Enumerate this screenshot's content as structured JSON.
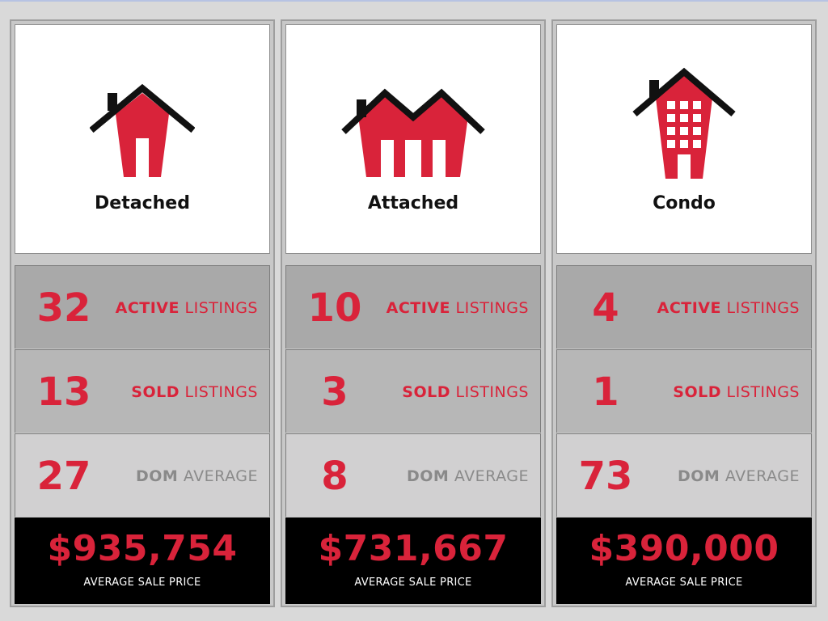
{
  "colors": {
    "accent_red": "#d9233a",
    "muted_grey": "#8a8a8a",
    "price_bg": "#000000"
  },
  "columns": [
    {
      "type": "Detached",
      "icon": "detached-house-icon",
      "active": {
        "value": "32",
        "strong": "ACTIVE",
        "rest": " LISTINGS"
      },
      "sold": {
        "value": "13",
        "strong": "SOLD",
        "rest": " LISTINGS"
      },
      "dom": {
        "value": "27",
        "strong": "DOM",
        "rest": " AVERAGE"
      },
      "price": {
        "value": "$935,754",
        "label": "AVERAGE SALE PRICE"
      }
    },
    {
      "type": "Attached",
      "icon": "attached-house-icon",
      "active": {
        "value": "10",
        "strong": "ACTIVE",
        "rest": " LISTINGS"
      },
      "sold": {
        "value": "3",
        "strong": "SOLD",
        "rest": " LISTINGS"
      },
      "dom": {
        "value": "8",
        "strong": "DOM",
        "rest": " AVERAGE"
      },
      "price": {
        "value": "$731,667",
        "label": "AVERAGE SALE PRICE"
      }
    },
    {
      "type": "Condo",
      "icon": "condo-building-icon",
      "active": {
        "value": "4",
        "strong": "ACTIVE",
        "rest": " LISTINGS"
      },
      "sold": {
        "value": "1",
        "strong": "SOLD",
        "rest": " LISTINGS"
      },
      "dom": {
        "value": "73",
        "strong": "DOM",
        "rest": " AVERAGE"
      },
      "price": {
        "value": "$390,000",
        "label": "AVERAGE SALE PRICE"
      }
    }
  ]
}
